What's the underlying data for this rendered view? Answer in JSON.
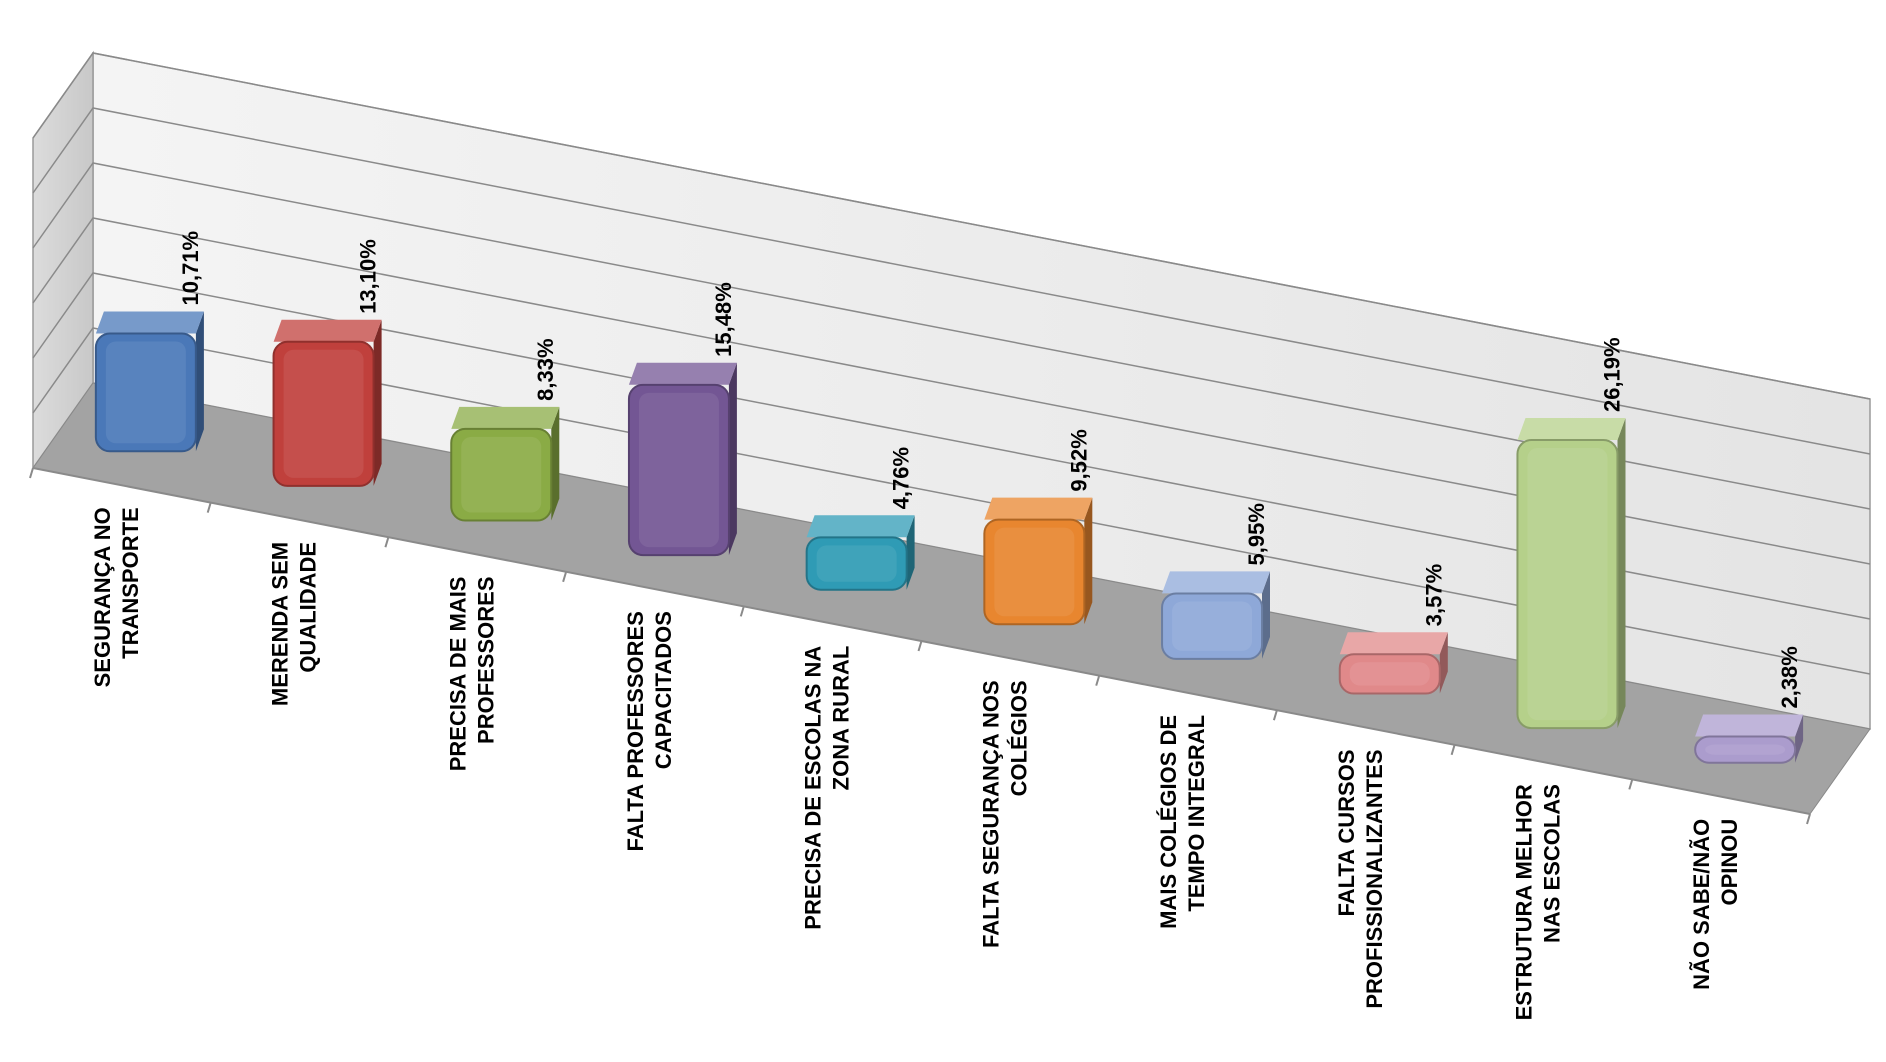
{
  "chart_data": {
    "type": "bar",
    "title": "",
    "xlabel": "",
    "ylabel": "",
    "ylim": [
      0,
      30
    ],
    "grid": true,
    "legend": "none",
    "categories": [
      "SEGURANÇA NO TRANSPORTE",
      "MERENDA SEM QUALIDADE",
      "PRECISA DE MAIS PROFESSORES",
      "FALTA PROFESSORES CAPACITADOS",
      "PRECISA DE ESCOLAS NA ZONA RURAL",
      "FALTA SEGURANÇA NOS COLÉGIOS",
      "MAIS COLÉGIOS DE TEMPO INTEGRAL",
      "FALTA CURSOS PROFISSIONALIZANTES",
      "ESTRUTURA MELHOR NAS ESCOLAS",
      "NÃO SABE/NÃO OPINOU"
    ],
    "category_lines": [
      [
        "SEGURANÇA NO",
        "TRANSPORTE"
      ],
      [
        "MERENDA SEM",
        "QUALIDADE"
      ],
      [
        "PRECISA DE MAIS",
        "PROFESSORES"
      ],
      [
        "FALTA PROFESSORES",
        "CAPACITADOS"
      ],
      [
        "PRECISA DE ESCOLAS NA",
        "ZONA RURAL"
      ],
      [
        "FALTA SEGURANÇA NOS",
        "COLÉGIOS"
      ],
      [
        "MAIS COLÉGIOS DE",
        "TEMPO INTEGRAL"
      ],
      [
        "FALTA CURSOS",
        "PROFISSIONALIZANTES"
      ],
      [
        "ESTRUTURA MELHOR",
        "NAS ESCOLAS"
      ],
      [
        "NÃO SABE/NÃO",
        "OPINOU"
      ]
    ],
    "values": [
      10.71,
      13.1,
      8.33,
      15.48,
      4.76,
      9.52,
      5.95,
      3.57,
      26.19,
      2.38
    ],
    "value_labels": [
      "10,71%",
      "13,10%",
      "8,33%",
      "15,48%",
      "4,76%",
      "9,52%",
      "5,95%",
      "3,57%",
      "26,19%",
      "2,38%"
    ],
    "colors": [
      "#4a78b8",
      "#c0403c",
      "#8aab45",
      "#735694",
      "#2f9bb5",
      "#e8862f",
      "#8ea8d8",
      "#e0898a",
      "#b5d08a",
      "#ab9ccd"
    ]
  }
}
